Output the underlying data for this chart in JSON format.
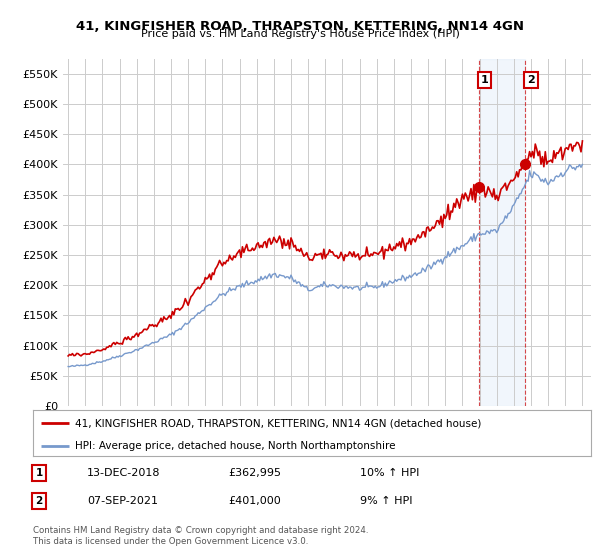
{
  "title": "41, KINGFISHER ROAD, THRAPSTON, KETTERING, NN14 4GN",
  "subtitle": "Price paid vs. HM Land Registry's House Price Index (HPI)",
  "ylabel_ticks": [
    "£0",
    "£50K",
    "£100K",
    "£150K",
    "£200K",
    "£250K",
    "£300K",
    "£350K",
    "£400K",
    "£450K",
    "£500K",
    "£550K"
  ],
  "ytick_values": [
    0,
    50000,
    100000,
    150000,
    200000,
    250000,
    300000,
    350000,
    400000,
    450000,
    500000,
    550000
  ],
  "ylim": [
    0,
    575000
  ],
  "xlim_start": 1994.7,
  "xlim_end": 2025.5,
  "legend_line1": "41, KINGFISHER ROAD, THRAPSTON, KETTERING, NN14 4GN (detached house)",
  "legend_line2": "HPI: Average price, detached house, North Northamptonshire",
  "sale1_label": "1",
  "sale1_date": "13-DEC-2018",
  "sale1_price": "£362,995",
  "sale1_hpi": "10% ↑ HPI",
  "sale2_label": "2",
  "sale2_date": "07-SEP-2021",
  "sale2_price": "£401,000",
  "sale2_hpi": "9% ↑ HPI",
  "footer": "Contains HM Land Registry data © Crown copyright and database right 2024.\nThis data is licensed under the Open Government Licence v3.0.",
  "property_color": "#cc0000",
  "hpi_color": "#7799cc",
  "background_color": "#ffffff",
  "grid_color": "#cccccc",
  "shade_color": "#d8e8f8",
  "sale1_x": 2018.96,
  "sale1_y": 362995,
  "sale2_x": 2021.67,
  "sale2_y": 401000
}
